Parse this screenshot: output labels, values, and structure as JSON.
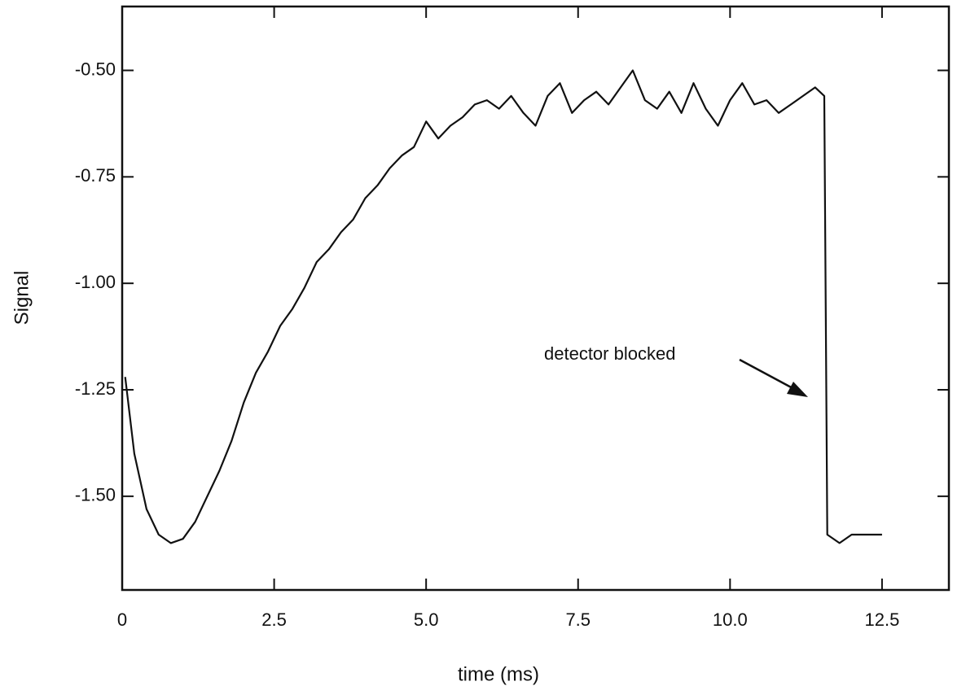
{
  "chart_data": {
    "type": "line",
    "x_label": "time (ms)",
    "y_label": "Signal",
    "annotation": "detector blocked",
    "xlim": [
      0,
      13.6
    ],
    "ylim": [
      -1.72,
      -0.35
    ],
    "xticks": [
      0,
      2.5,
      {
        "value": 5,
        "label": "5.0"
      },
      7.5,
      {
        "value": 10,
        "label": "10.0"
      },
      12.5
    ],
    "yticks": [
      {
        "value": -0.5,
        "label": "-0.50"
      },
      -0.75,
      {
        "value": -1,
        "label": "-1.00"
      },
      -1.25,
      {
        "value": -1.5,
        "label": "-1.50"
      }
    ],
    "grid": false,
    "series": [
      {
        "color": "#111111",
        "x": [
          0.05,
          0.2,
          0.4,
          0.6,
          0.8,
          1.0,
          1.2,
          1.4,
          1.6,
          1.8,
          2.0,
          2.2,
          2.4,
          2.6,
          2.8,
          3.0,
          3.2,
          3.4,
          3.6,
          3.8,
          4.0,
          4.2,
          4.4,
          4.6,
          4.8,
          5.0,
          5.2,
          5.4,
          5.6,
          5.8,
          6.0,
          6.2,
          6.4,
          6.6,
          6.8,
          7.0,
          7.2,
          7.4,
          7.6,
          7.8,
          8.0,
          8.2,
          8.4,
          8.6,
          8.8,
          9.0,
          9.2,
          9.4,
          9.6,
          9.8,
          10.0,
          10.2,
          10.4,
          10.6,
          10.8,
          11.0,
          11.2,
          11.4,
          11.55,
          11.6,
          11.8,
          12.0,
          12.2,
          12.5
        ],
        "values": [
          -1.22,
          -1.4,
          -1.53,
          -1.59,
          -1.61,
          -1.6,
          -1.56,
          -1.5,
          -1.44,
          -1.37,
          -1.28,
          -1.21,
          -1.16,
          -1.1,
          -1.06,
          -1.01,
          -0.95,
          -0.92,
          -0.88,
          -0.85,
          -0.8,
          -0.77,
          -0.73,
          -0.7,
          -0.68,
          -0.62,
          -0.66,
          -0.63,
          -0.61,
          -0.58,
          -0.57,
          -0.59,
          -0.56,
          -0.6,
          -0.63,
          -0.56,
          -0.53,
          -0.6,
          -0.57,
          -0.55,
          -0.58,
          -0.54,
          -0.5,
          -0.57,
          -0.59,
          -0.55,
          -0.6,
          -0.53,
          -0.59,
          -0.63,
          -0.57,
          -0.53,
          -0.58,
          -0.57,
          -0.6,
          -0.58,
          -0.56,
          -0.54,
          -0.56,
          -1.59,
          -1.61,
          -1.59,
          -1.59,
          -1.59
        ]
      }
    ]
  }
}
